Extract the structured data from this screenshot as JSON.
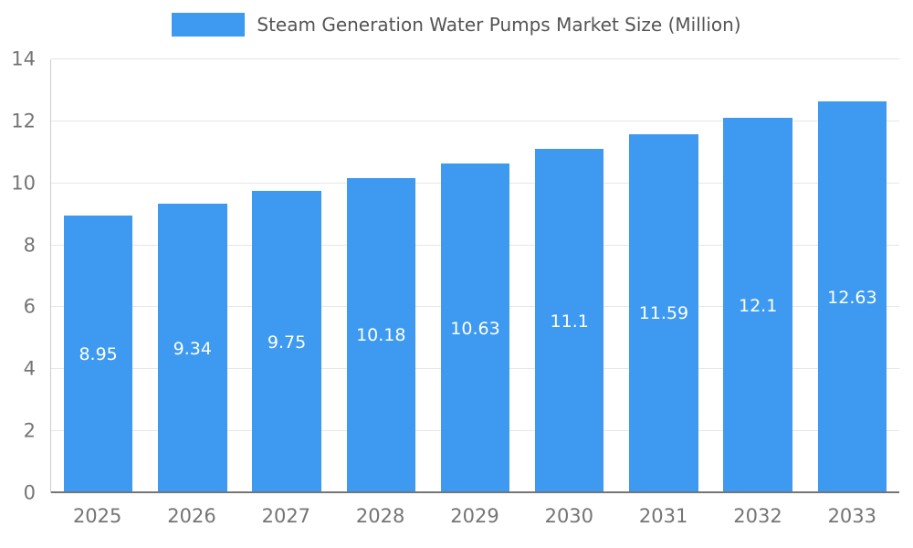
{
  "chart_data": {
    "type": "bar",
    "title": "Steam Generation Water Pumps Market Size (Million)",
    "categories": [
      "2025",
      "2026",
      "2027",
      "2028",
      "2029",
      "2030",
      "2031",
      "2032",
      "2033"
    ],
    "values": [
      8.95,
      9.34,
      9.75,
      10.18,
      10.63,
      11.1,
      11.59,
      12.1,
      12.63
    ],
    "value_labels": [
      "8.95",
      "9.34",
      "9.75",
      "10.18",
      "10.63",
      "11.1",
      "11.59",
      "12.1",
      "12.63"
    ],
    "xlabel": "",
    "ylabel": "",
    "ylim": [
      0,
      14
    ],
    "ytick_step": 2,
    "yticks": [
      "0",
      "2",
      "4",
      "6",
      "8",
      "10",
      "12",
      "14"
    ],
    "grid": true,
    "legend_position": "top",
    "bar_color": "#3D9AF0",
    "label_color": "#ffffff",
    "axis_text_color": "#757575",
    "gridline_color": "#e6e6e6",
    "baseline_color": "#757575"
  }
}
